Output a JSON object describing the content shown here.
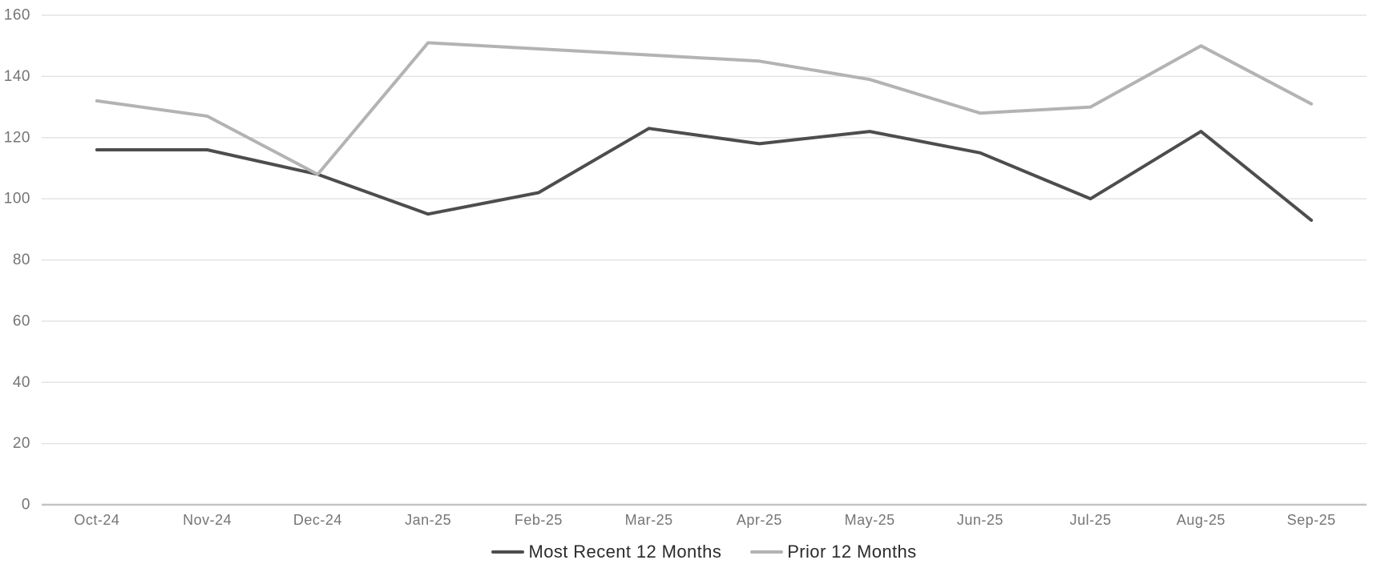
{
  "chart_data": {
    "type": "line",
    "title": "",
    "xlabel": "",
    "ylabel": "",
    "categories": [
      "Oct-24",
      "Nov-24",
      "Dec-24",
      "Jan-25",
      "Feb-25",
      "Mar-25",
      "Apr-25",
      "May-25",
      "Jun-25",
      "Jul-25",
      "Aug-25",
      "Sep-25"
    ],
    "series": [
      {
        "name": "Most Recent 12 Months",
        "values": [
          116,
          116,
          108,
          95,
          102,
          123,
          118,
          122,
          115,
          100,
          122,
          93
        ],
        "color": "#4d4d4d"
      },
      {
        "name": "Prior 12 Months",
        "values": [
          132,
          127,
          108,
          151,
          149,
          147,
          145,
          139,
          128,
          130,
          150,
          131
        ],
        "color": "#b3b3b3"
      }
    ],
    "ylim": [
      0,
      160
    ],
    "ytick_step": 20,
    "yticks": [
      0,
      20,
      40,
      60,
      80,
      100,
      120,
      140,
      160
    ],
    "grid": true,
    "legend_position": "bottom"
  },
  "colors": {
    "background": "#ffffff",
    "gridline": "#e3e3e3",
    "axis_line": "#c3c3c3",
    "tick_label": "#757575",
    "legend_text": "#2b2b2b"
  }
}
